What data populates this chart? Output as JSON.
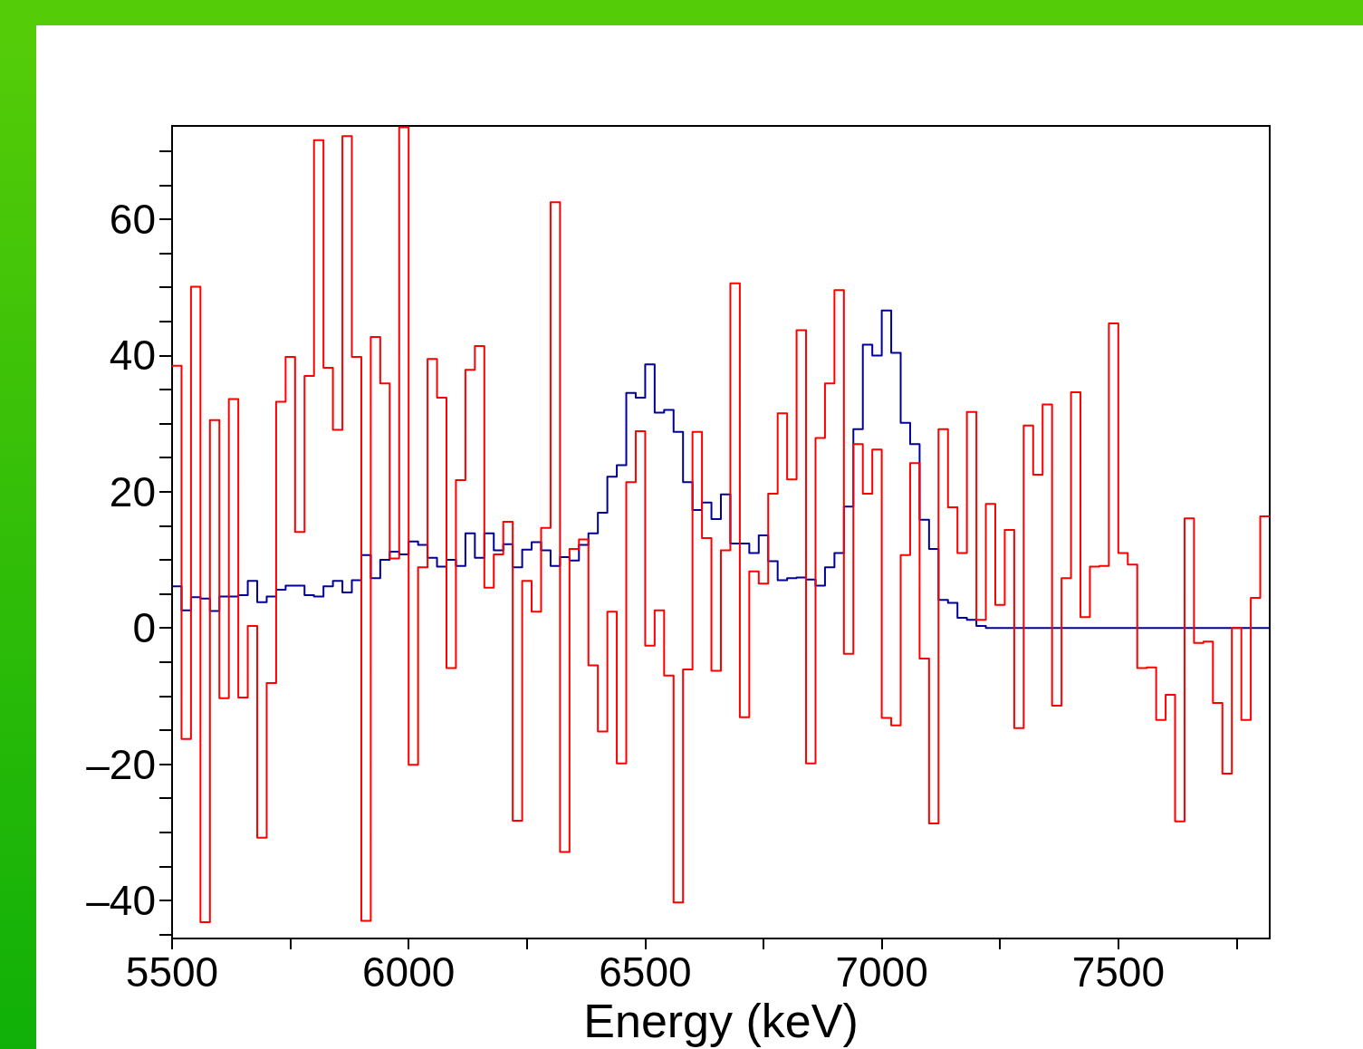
{
  "chart_data": {
    "type": "histogram",
    "xlabel": "Energy (keV)",
    "bins": [
      5500,
      5520,
      5540,
      5560,
      5580,
      5600,
      5620,
      5640,
      5660,
      5680,
      5700,
      5720,
      5740,
      5760,
      5780,
      5800,
      5820,
      5840,
      5860,
      5880,
      5900,
      5920,
      5940,
      5960,
      5980,
      6000,
      6020,
      6040,
      6060,
      6080,
      6100,
      6120,
      6140,
      6160,
      6180,
      6200,
      6220,
      6240,
      6260,
      6280,
      6300,
      6320,
      6340,
      6360,
      6380,
      6400,
      6420,
      6440,
      6460,
      6480,
      6500,
      6520,
      6540,
      6560,
      6580,
      6600,
      6620,
      6640,
      6660,
      6680,
      6700,
      6720,
      6740,
      6760,
      6780,
      6800,
      6820,
      6840,
      6860,
      6880,
      6900,
      6920,
      6940,
      6960,
      6980,
      7000,
      7020,
      7040,
      7060,
      7080,
      7100,
      7120,
      7140,
      7160,
      7180,
      7200,
      7220,
      7240,
      7260,
      7280,
      7300,
      7320,
      7340,
      7360,
      7380,
      7400,
      7420,
      7440,
      7460,
      7480,
      7500,
      7520,
      7540,
      7560,
      7580,
      7600,
      7620,
      7640,
      7660,
      7680,
      7700,
      7720,
      7740,
      7760,
      7780,
      7800,
      7820
    ],
    "series": [
      {
        "color": "#ff0000",
        "values": [
          38.5,
          -16.3,
          50.1,
          -43.2,
          30.5,
          -10.3,
          33.6,
          -10.2,
          0.3,
          -30.8,
          -8.1,
          33.2,
          39.8,
          14.1,
          37.0,
          71.6,
          38.2,
          29.1,
          72.2,
          39.8,
          -43.0,
          42.7,
          35.9,
          10.2,
          73.5,
          -20.1,
          8.9,
          39.5,
          33.8,
          -5.9,
          21.7,
          37.9,
          41.4,
          5.9,
          10.8,
          15.6,
          -28.3,
          6.9,
          2.4,
          14.7,
          62.5,
          -32.9,
          11.6,
          13.0,
          -5.5,
          -15.2,
          2.4,
          -19.9,
          21.4,
          28.9,
          -2.6,
          2.6,
          -7.0,
          -40.3,
          -6.1,
          28.8,
          13.2,
          -6.3,
          11.4,
          50.6,
          -13.1,
          8.3,
          6.5,
          19.7,
          31.5,
          21.8,
          43.7,
          -19.9,
          27.9,
          35.9,
          49.6,
          -3.8,
          27.0,
          19.7,
          26.2,
          -13.2,
          -14.3,
          10.7,
          24.2,
          -4.5,
          -28.7,
          29.2,
          17.7,
          11.0,
          31.7,
          1.2,
          18.2,
          3.4,
          14.4,
          -14.7,
          29.7,
          22.5,
          32.8,
          -11.4,
          7.3,
          34.6,
          1.6,
          9.0,
          9.1,
          44.7,
          11.0,
          9.3,
          -5.9,
          -5.8,
          -13.5,
          -9.8,
          -28.4,
          16.1,
          -2.2,
          -2.0,
          -11.0,
          -21.4,
          0,
          -13.5,
          4.4,
          16.4
        ]
      },
      {
        "color": "#000099",
        "values": [
          6.1,
          2.6,
          4.5,
          4.3,
          2.5,
          4.6,
          4.6,
          4.8,
          6.9,
          3.8,
          4.6,
          5.6,
          6.2,
          6.2,
          4.8,
          4.6,
          6.1,
          6.9,
          5.2,
          7.0,
          10.7,
          7.3,
          10.0,
          11.2,
          10.8,
          12.7,
          12.2,
          10.3,
          9.0,
          10.0,
          9.1,
          13.9,
          10.3,
          13.9,
          11.4,
          12.3,
          8.9,
          11.5,
          12.6,
          11.4,
          9.1,
          10.4,
          9.9,
          12.2,
          13.9,
          16.9,
          22.2,
          23.9,
          34.5,
          33.8,
          38.7,
          31.6,
          32.0,
          28.8,
          21.4,
          17.3,
          18.4,
          16.0,
          19.6,
          12.4,
          12.4,
          11.0,
          13.6,
          9.8,
          7.0,
          7.3,
          7.4,
          7.1,
          6.2,
          8.9,
          11.0,
          17.8,
          29.2,
          41.6,
          40.0,
          46.6,
          40.4,
          30.1,
          27.0,
          15.9,
          11.6,
          4.1,
          3.7,
          1.5,
          1.2,
          0.3,
          0,
          0,
          0,
          0,
          0,
          0,
          0,
          0,
          0,
          0,
          0,
          0,
          0,
          0,
          0,
          0,
          0,
          0,
          0,
          0,
          0,
          0,
          0,
          0,
          0,
          0,
          0,
          0,
          0,
          0
        ]
      }
    ],
    "xlim": [
      5500,
      7820
    ],
    "xticks": [
      5500,
      {
        "value": 5750,
        "label": null
      },
      6000,
      {
        "value": 6250,
        "label": null
      },
      6500,
      {
        "value": 6750,
        "label": null
      },
      7000,
      {
        "value": 7250,
        "label": null
      },
      7500,
      {
        "value": 7750,
        "label": null
      }
    ],
    "ylim": [
      -45.6,
      73.7
    ],
    "yticks": [
      {
        "value": -45,
        "label": null
      },
      {
        "value": -40,
        "label": "–40"
      },
      {
        "value": -35,
        "label": null
      },
      {
        "value": -30,
        "label": null
      },
      {
        "value": -25,
        "label": null
      },
      {
        "value": -20,
        "label": "–20"
      },
      {
        "value": -15,
        "label": null
      },
      {
        "value": -10,
        "label": null
      },
      {
        "value": -5,
        "label": null
      },
      0,
      {
        "value": 5,
        "label": null
      },
      {
        "value": 10,
        "label": null
      },
      {
        "value": 15,
        "label": null
      },
      20,
      {
        "value": 25,
        "label": null
      },
      {
        "value": 30,
        "label": null
      },
      {
        "value": 35,
        "label": null
      },
      40,
      {
        "value": 45,
        "label": null
      },
      {
        "value": 50,
        "label": null
      },
      {
        "value": 55,
        "label": null
      },
      60,
      {
        "value": 65,
        "label": null
      },
      {
        "value": 70,
        "label": null
      }
    ]
  }
}
